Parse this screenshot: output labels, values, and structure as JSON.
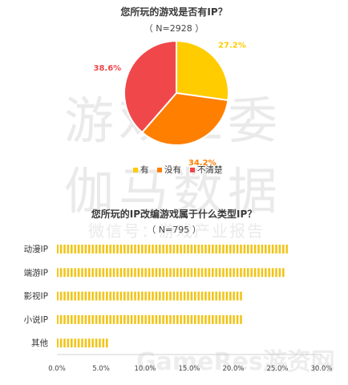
{
  "chart_data": [
    {
      "type": "pie",
      "title": "您所玩的游戏是否有IP？",
      "subtitle": "（ N=2928 ）",
      "slices": [
        {
          "label": "有",
          "value": 27.2,
          "display": "27.2%",
          "color": "#FFCC00"
        },
        {
          "label": "没有",
          "value": 34.2,
          "display": "34.2%",
          "color": "#FF7F00"
        },
        {
          "label": "不清楚",
          "value": 38.6,
          "display": "38.6%",
          "color": "#F0474B"
        }
      ],
      "legend_position": "bottom"
    },
    {
      "type": "bar",
      "orientation": "horizontal",
      "title": "您所玩的IP改编游戏属于什么类型IP？",
      "subtitle": "（ N=795 ）",
      "categories": [
        "动漫IP",
        "端游IP",
        "影视IP",
        "小说IP",
        "其他"
      ],
      "values": [
        26.2,
        25.9,
        21.0,
        21.0,
        5.9
      ],
      "color": "#F0C419",
      "xlim": [
        0,
        30
      ],
      "xticks": [
        "0.0%",
        "5.0%",
        "10.0%",
        "15.0%",
        "20.0%",
        "25.0%",
        "30.0%"
      ],
      "grid": false
    }
  ],
  "watermark": {
    "line1": "游戏工委",
    "line2": "伽马数据",
    "line3": "微信号：游戏产业报告",
    "brand": "GameRes游资网"
  }
}
